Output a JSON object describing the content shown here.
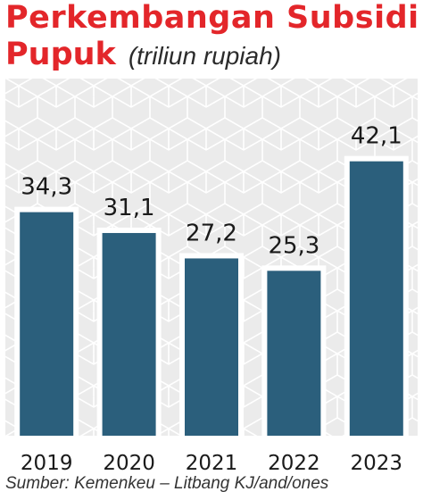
{
  "colors": {
    "title": "#e3262a",
    "bar": "#2b5f7c",
    "bar_outline": "#ffffff",
    "panel_background": "#ebebeb",
    "pattern_line": "#ffffff",
    "value_text": "#1a1a1a"
  },
  "header": {
    "title_line1": "Perkembangan Subsidi",
    "title_line2_main": "Pupuk",
    "title_unit": "(triliun rupiah)"
  },
  "footer": {
    "source": "Sumber: Kemenkeu – Litbang KJ/and/ones"
  },
  "chart_data": {
    "type": "bar",
    "title": "Perkembangan Subsidi Pupuk",
    "subtitle": "(triliun rupiah)",
    "categories": [
      "2019",
      "2020",
      "2021",
      "2022",
      "2023"
    ],
    "values": [
      34.3,
      31.1,
      27.2,
      25.3,
      42.1
    ],
    "value_labels": [
      "34,3",
      "31,1",
      "27,2",
      "25,3",
      "42,1"
    ],
    "ylim": [
      0,
      50
    ],
    "grid": false,
    "legend": "none",
    "xlabel": "",
    "ylabel": ""
  }
}
